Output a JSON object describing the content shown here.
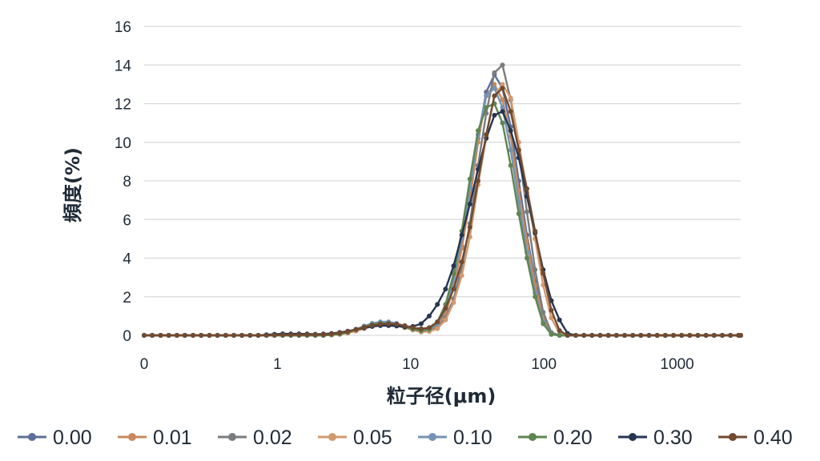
{
  "chart_data": {
    "type": "line",
    "title": "",
    "xlabel": "粒子径(μm)",
    "ylabel": "頻度(%)",
    "x_scale": "log",
    "x_ticks": [
      {
        "value": 0.1,
        "label": "0"
      },
      {
        "value": 1,
        "label": "1"
      },
      {
        "value": 10,
        "label": "10"
      },
      {
        "value": 100,
        "label": "100"
      },
      {
        "value": 1000,
        "label": "1000"
      }
    ],
    "xlim": [
      0.1,
      3000
    ],
    "ylim": [
      0,
      16
    ],
    "y_ticks": [
      "0",
      "2",
      "4",
      "6",
      "8",
      "10",
      "12",
      "14",
      "16"
    ],
    "grid": "horizontal",
    "legend_position": "bottom",
    "x": [
      0.1,
      0.115,
      0.133,
      0.153,
      0.176,
      0.202,
      0.233,
      0.268,
      0.309,
      0.355,
      0.409,
      0.471,
      0.542,
      0.624,
      0.718,
      0.827,
      0.952,
      1.096,
      1.261,
      1.452,
      1.671,
      1.924,
      2.214,
      2.549,
      2.934,
      3.377,
      3.887,
      4.474,
      5.15,
      5.928,
      6.823,
      7.854,
      9.04,
      10.4,
      11.98,
      13.79,
      15.87,
      18.27,
      21.03,
      24.2,
      27.86,
      32.07,
      36.91,
      42.49,
      48.9,
      56.29,
      64.79,
      74.58,
      85.84,
      98.81,
      113.7,
      130.9,
      150.7,
      173.5,
      199.6,
      229.8,
      264.5,
      304.5,
      350.5,
      403.4,
      464.3,
      534.5,
      615.2,
      708.1,
      815.1,
      938.2,
      1080,
      1243,
      1431,
      1647,
      1896,
      2182,
      2512,
      2891,
      3000
    ],
    "series": [
      {
        "name": "0.00",
        "color": "#5b6f99",
        "values": [
          0,
          0,
          0,
          0,
          0,
          0,
          0,
          0,
          0,
          0,
          0,
          0,
          0,
          0,
          0,
          0,
          0,
          0,
          0,
          0,
          0,
          0,
          0,
          0.02,
          0.06,
          0.15,
          0.28,
          0.42,
          0.55,
          0.62,
          0.62,
          0.55,
          0.42,
          0.3,
          0.2,
          0.25,
          0.5,
          1.2,
          2.6,
          4.6,
          7.2,
          10.2,
          12.6,
          13.5,
          12.8,
          10.8,
          8.0,
          5.2,
          2.8,
          1.0,
          0.1,
          0,
          0,
          0,
          0,
          0,
          0,
          0,
          0,
          0,
          0,
          0,
          0,
          0,
          0,
          0,
          0,
          0,
          0,
          0,
          0,
          0,
          0,
          0,
          0
        ]
      },
      {
        "name": "0.01",
        "color": "#c68a5e",
        "values": [
          0,
          0,
          0,
          0,
          0,
          0,
          0,
          0,
          0,
          0,
          0,
          0,
          0,
          0,
          0,
          0,
          0,
          0,
          0,
          0,
          0,
          0,
          0,
          0.02,
          0.06,
          0.14,
          0.26,
          0.4,
          0.52,
          0.6,
          0.6,
          0.54,
          0.42,
          0.3,
          0.2,
          0.25,
          0.5,
          1.1,
          2.5,
          4.5,
          7.0,
          10.0,
          12.4,
          13.0,
          12.2,
          10.3,
          7.5,
          4.9,
          2.6,
          0.9,
          0.1,
          0,
          0,
          0,
          0,
          0,
          0,
          0,
          0,
          0,
          0,
          0,
          0,
          0,
          0,
          0,
          0,
          0,
          0,
          0,
          0,
          0,
          0,
          0,
          0
        ]
      },
      {
        "name": "0.02",
        "color": "#7a7c7e",
        "values": [
          0,
          0,
          0,
          0,
          0,
          0,
          0,
          0,
          0,
          0,
          0,
          0,
          0,
          0,
          0,
          0,
          0,
          0,
          0,
          0,
          0,
          0,
          0,
          0.02,
          0.05,
          0.12,
          0.24,
          0.38,
          0.5,
          0.58,
          0.58,
          0.52,
          0.4,
          0.28,
          0.18,
          0.22,
          0.4,
          0.9,
          1.9,
          3.5,
          5.8,
          8.8,
          11.5,
          13.6,
          14.0,
          12.2,
          9.6,
          6.4,
          3.4,
          1.2,
          0.15,
          0,
          0,
          0,
          0,
          0,
          0,
          0,
          0,
          0,
          0,
          0,
          0,
          0,
          0,
          0,
          0,
          0,
          0,
          0,
          0,
          0,
          0,
          0,
          0
        ]
      },
      {
        "name": "0.05",
        "color": "#d29a70",
        "values": [
          0,
          0,
          0,
          0,
          0,
          0,
          0,
          0,
          0,
          0,
          0,
          0,
          0,
          0,
          0,
          0,
          0,
          0,
          0,
          0,
          0,
          0,
          0,
          0.02,
          0.05,
          0.12,
          0.22,
          0.35,
          0.46,
          0.54,
          0.56,
          0.5,
          0.4,
          0.28,
          0.18,
          0.2,
          0.35,
          0.8,
          1.7,
          3.1,
          5.1,
          7.8,
          10.3,
          12.4,
          13.0,
          12.3,
          10.0,
          7.4,
          5.0,
          2.6,
          0.9,
          0.1,
          0,
          0,
          0,
          0,
          0,
          0,
          0,
          0,
          0,
          0,
          0,
          0,
          0,
          0,
          0,
          0,
          0,
          0,
          0,
          0,
          0,
          0,
          0
        ]
      },
      {
        "name": "0.10",
        "color": "#7593b5",
        "values": [
          0,
          0,
          0,
          0,
          0,
          0,
          0,
          0,
          0,
          0,
          0,
          0,
          0,
          0,
          0,
          0,
          0,
          0,
          0,
          0,
          0,
          0,
          0,
          0.03,
          0.08,
          0.18,
          0.32,
          0.48,
          0.62,
          0.7,
          0.7,
          0.62,
          0.48,
          0.34,
          0.24,
          0.3,
          0.6,
          1.4,
          2.9,
          5.0,
          7.6,
          10.4,
          12.4,
          12.8,
          11.8,
          9.6,
          6.9,
          4.3,
          2.2,
          0.7,
          0.05,
          0,
          0,
          0,
          0,
          0,
          0,
          0,
          0,
          0,
          0,
          0,
          0,
          0,
          0,
          0,
          0,
          0,
          0,
          0,
          0,
          0,
          0,
          0,
          0
        ]
      },
      {
        "name": "0.20",
        "color": "#5f8550",
        "values": [
          0,
          0,
          0,
          0,
          0,
          0,
          0,
          0,
          0,
          0,
          0,
          0,
          0,
          0,
          0,
          0,
          0,
          0,
          0,
          0,
          0,
          0,
          0,
          0.03,
          0.07,
          0.16,
          0.3,
          0.44,
          0.56,
          0.62,
          0.62,
          0.56,
          0.44,
          0.32,
          0.24,
          0.32,
          0.7,
          1.6,
          3.2,
          5.4,
          8.1,
          10.6,
          11.8,
          12.0,
          11.0,
          8.8,
          6.3,
          4.0,
          2.0,
          0.6,
          0.05,
          0,
          0,
          0,
          0,
          0,
          0,
          0,
          0,
          0,
          0,
          0,
          0,
          0,
          0,
          0,
          0,
          0,
          0,
          0,
          0,
          0,
          0,
          0,
          0
        ]
      },
      {
        "name": "0.30",
        "color": "#263550",
        "values": [
          0,
          0,
          0,
          0,
          0,
          0,
          0,
          0,
          0,
          0,
          0,
          0,
          0,
          0,
          0,
          0.03,
          0.06,
          0.08,
          0.08,
          0.08,
          0.07,
          0.06,
          0.07,
          0.1,
          0.15,
          0.22,
          0.3,
          0.38,
          0.46,
          0.5,
          0.5,
          0.48,
          0.44,
          0.46,
          0.6,
          1.0,
          1.6,
          2.4,
          3.6,
          5.2,
          6.8,
          8.6,
          10.2,
          11.4,
          11.6,
          10.6,
          9.2,
          7.2,
          5.3,
          3.4,
          1.8,
          0.8,
          0.1,
          0,
          0,
          0,
          0,
          0,
          0,
          0,
          0,
          0,
          0,
          0,
          0,
          0,
          0,
          0,
          0,
          0,
          0,
          0,
          0,
          0,
          0
        ]
      },
      {
        "name": "0.40",
        "color": "#714a30",
        "values": [
          0,
          0,
          0,
          0,
          0,
          0,
          0,
          0,
          0,
          0,
          0,
          0,
          0,
          0,
          0,
          0,
          0.01,
          0.02,
          0.03,
          0.03,
          0.03,
          0.03,
          0.04,
          0.07,
          0.12,
          0.2,
          0.3,
          0.42,
          0.52,
          0.58,
          0.6,
          0.58,
          0.5,
          0.4,
          0.34,
          0.4,
          0.7,
          1.4,
          2.4,
          3.8,
          5.6,
          8.0,
          10.4,
          12.4,
          12.8,
          11.6,
          9.6,
          7.6,
          5.4,
          3.2,
          1.3,
          0.25,
          0,
          0,
          0,
          0,
          0,
          0,
          0,
          0,
          0,
          0,
          0,
          0,
          0,
          0,
          0,
          0,
          0,
          0,
          0,
          0,
          0,
          0,
          0
        ]
      }
    ]
  }
}
